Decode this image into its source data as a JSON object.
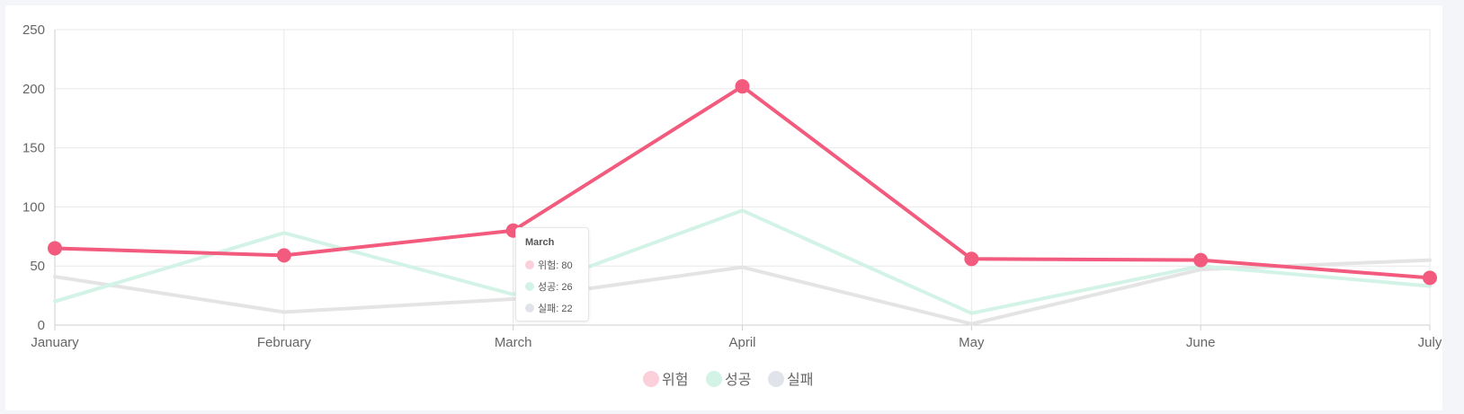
{
  "chart_data": {
    "type": "line",
    "categories": [
      "January",
      "February",
      "March",
      "April",
      "May",
      "June",
      "July"
    ],
    "ylim": [
      0,
      250
    ],
    "yticks": [
      "0",
      "50",
      "100",
      "150",
      "200",
      "250"
    ],
    "grid": true,
    "legend_position": "bottom",
    "series": [
      {
        "name": "위험",
        "values": [
          65,
          59,
          80,
          202,
          56,
          55,
          40
        ],
        "color": "#f25b7d",
        "legend_color": "#fbd0db"
      },
      {
        "name": "성공",
        "values": [
          20,
          78,
          26,
          97,
          10,
          50,
          33
        ],
        "color": "#d3f3e7",
        "legend_color": "#d3f3e7"
      },
      {
        "name": "실패",
        "values": [
          41,
          11,
          22,
          49,
          1,
          47,
          55
        ],
        "color": "#e4e4e4",
        "legend_color": "#e0e4ea"
      }
    ],
    "tooltip": {
      "title": "March",
      "rows": [
        "위험: 80",
        "성공: 26",
        "실패: 22"
      ]
    }
  }
}
